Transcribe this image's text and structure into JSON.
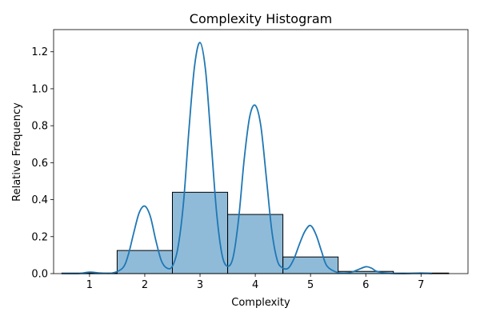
{
  "chart_data": {
    "type": "bar",
    "title": "Complexity Histogram",
    "xlabel": "Complexity",
    "ylabel": "Relative Frequency",
    "xlim": [
      0.35,
      7.85
    ],
    "ylim": [
      0,
      1.32
    ],
    "x_ticks": [
      1,
      2,
      3,
      4,
      5,
      6,
      7
    ],
    "y_ticks": [
      0.0,
      0.2,
      0.4,
      0.6,
      0.8,
      1.0,
      1.2
    ],
    "grid": false,
    "legend": "none",
    "bins": [
      {
        "center": 1,
        "value": 0.003
      },
      {
        "center": 2,
        "value": 0.125
      },
      {
        "center": 3,
        "value": 0.44
      },
      {
        "center": 4,
        "value": 0.32
      },
      {
        "center": 5,
        "value": 0.09
      },
      {
        "center": 6,
        "value": 0.012
      },
      {
        "center": 7,
        "value": 0.003
      }
    ],
    "bin_width": 1,
    "kde": {
      "x": [
        0.5,
        0.8,
        1.0,
        1.2,
        1.4,
        1.6,
        1.7,
        1.8,
        1.9,
        2.0,
        2.1,
        2.2,
        2.3,
        2.4,
        2.5,
        2.6,
        2.7,
        2.8,
        2.9,
        3.0,
        3.1,
        3.2,
        3.3,
        3.4,
        3.5,
        3.6,
        3.7,
        3.8,
        3.9,
        4.0,
        4.1,
        4.2,
        4.3,
        4.4,
        4.5,
        4.6,
        4.7,
        4.8,
        4.9,
        5.0,
        5.1,
        5.2,
        5.3,
        5.5,
        5.7,
        5.85,
        6.0,
        6.1,
        6.2,
        6.4,
        6.7,
        7.0,
        7.2
      ],
      "y": [
        0.0,
        0.0,
        0.008,
        0.003,
        0.002,
        0.03,
        0.1,
        0.22,
        0.33,
        0.365,
        0.31,
        0.18,
        0.07,
        0.03,
        0.04,
        0.14,
        0.38,
        0.78,
        1.12,
        1.25,
        1.1,
        0.72,
        0.33,
        0.1,
        0.04,
        0.09,
        0.3,
        0.62,
        0.85,
        0.91,
        0.8,
        0.52,
        0.23,
        0.07,
        0.03,
        0.03,
        0.08,
        0.16,
        0.23,
        0.26,
        0.21,
        0.12,
        0.04,
        0.005,
        0.005,
        0.02,
        0.037,
        0.03,
        0.012,
        0.002,
        0.0,
        0.003,
        0.0
      ]
    },
    "colors": {
      "bar_fill": "#1f77b4",
      "bar_fill_opacity": 0.5,
      "bar_edge": "#000000",
      "kde_line": "#1f77b4"
    }
  }
}
